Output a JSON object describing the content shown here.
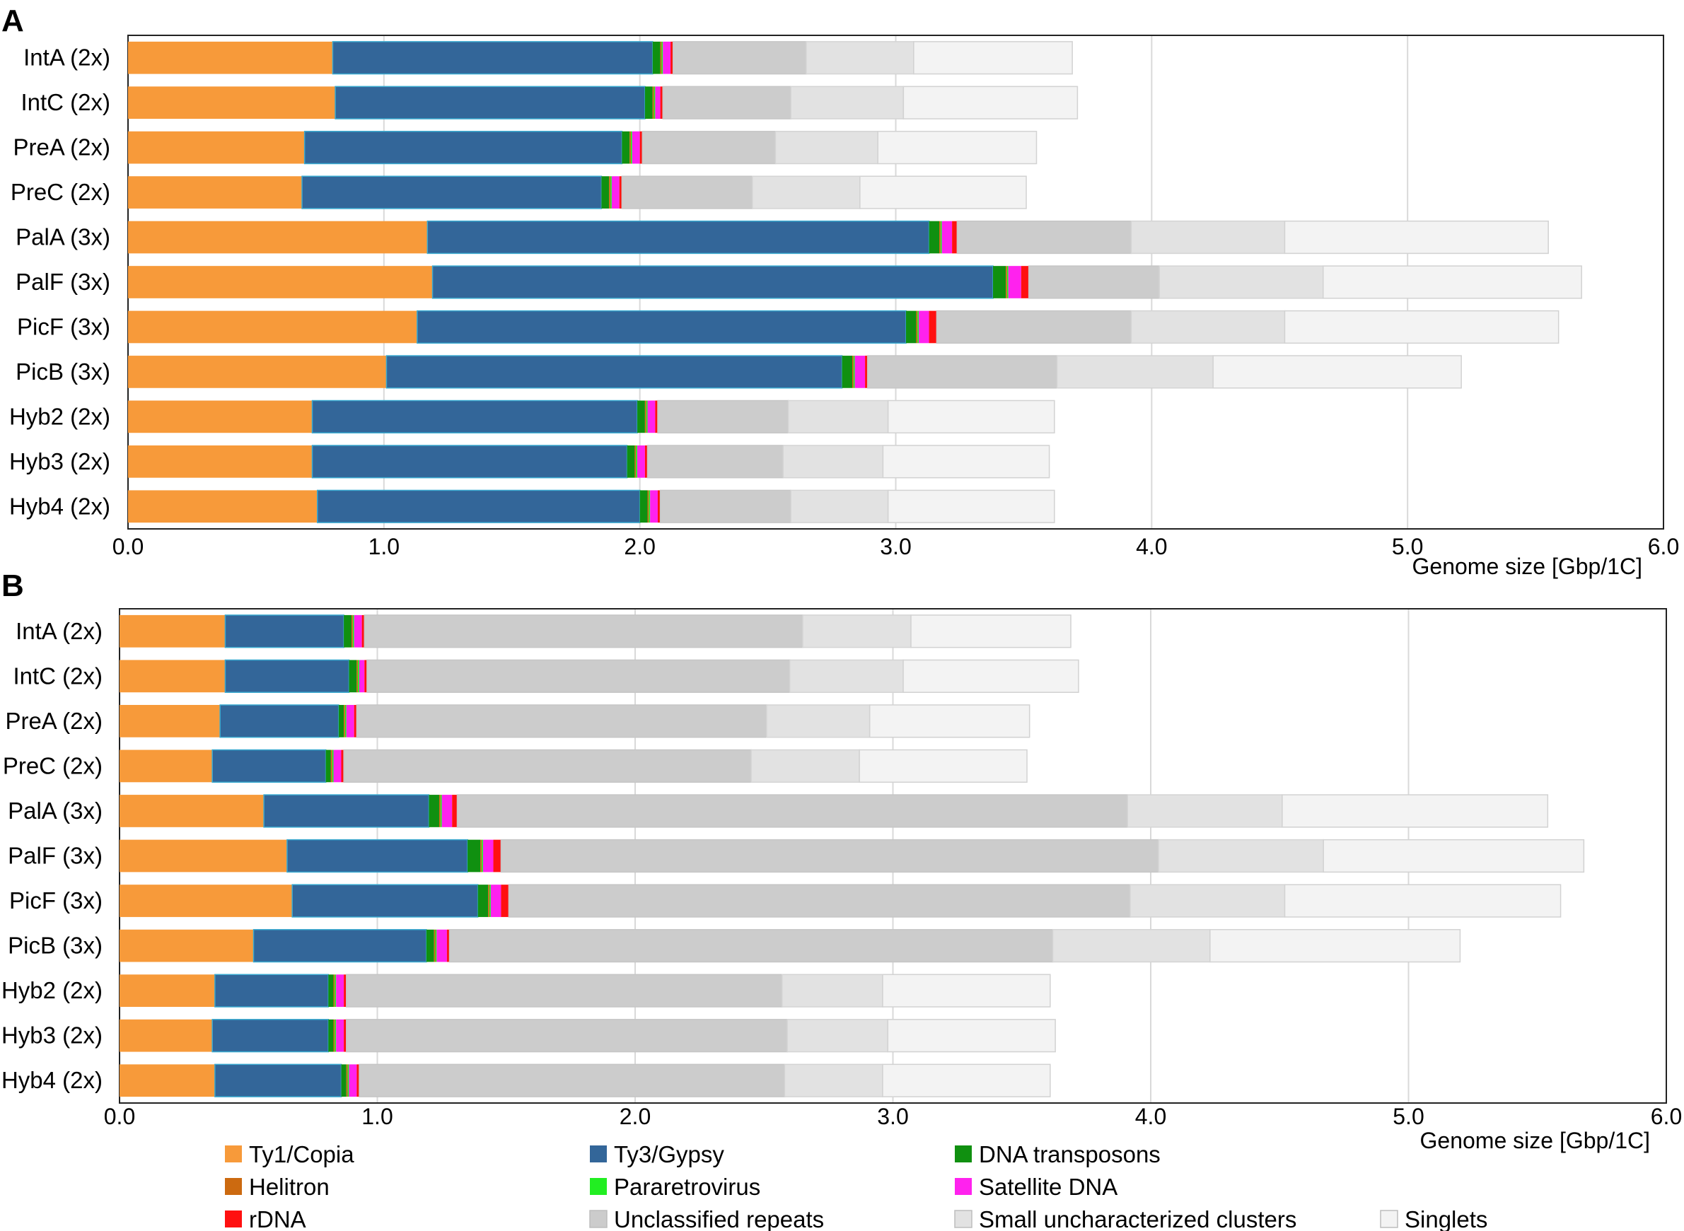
{
  "chart_data": [
    {
      "panel": "A",
      "type": "bar",
      "orientation": "horizontal",
      "stacked": true,
      "categories": [
        "IntA (2x)",
        "IntC (2x)",
        "PreA (2x)",
        "PreC (2x)",
        "PalA (3x)",
        "PalF (3x)",
        "PicF (3x)",
        "PicB (3x)",
        "Hyb2 (2x)",
        "Hyb3 (2x)",
        "Hyb4 (2x)"
      ],
      "xlabel": "Genome size [Gbp/1C]",
      "xlim": [
        0,
        6
      ],
      "xticks": [
        "0.0",
        "1.0",
        "2.0",
        "3.0",
        "4.0",
        "5.0",
        "6.0"
      ],
      "xtick_values": [
        0,
        1,
        2,
        3,
        4,
        5,
        6
      ],
      "grid": "vertical",
      "series": [
        {
          "name": "Ty1/Copia",
          "values": [
            0.8,
            0.81,
            0.69,
            0.68,
            1.17,
            1.19,
            1.13,
            1.01,
            0.72,
            0.72,
            0.74
          ]
        },
        {
          "name": "Ty3/Gypsy",
          "values": [
            1.25,
            1.21,
            1.24,
            1.17,
            1.96,
            2.19,
            1.91,
            1.78,
            1.27,
            1.23,
            1.26
          ]
        },
        {
          "name": "DNA transposons",
          "values": [
            0.03,
            0.03,
            0.03,
            0.03,
            0.04,
            0.05,
            0.04,
            0.04,
            0.03,
            0.03,
            0.03
          ]
        },
        {
          "name": "Helitron",
          "values": [
            0.005,
            0.005,
            0.005,
            0.005,
            0.005,
            0.005,
            0.005,
            0.005,
            0.005,
            0.005,
            0.005
          ]
        },
        {
          "name": "Pararetrovirus",
          "values": [
            0.005,
            0.005,
            0.005,
            0.005,
            0.005,
            0.005,
            0.005,
            0.005,
            0.005,
            0.005,
            0.005
          ]
        },
        {
          "name": "Satellite DNA",
          "values": [
            0.03,
            0.02,
            0.03,
            0.03,
            0.04,
            0.05,
            0.04,
            0.04,
            0.03,
            0.03,
            0.03
          ]
        },
        {
          "name": "rDNA",
          "values": [
            0.01,
            0.01,
            0.01,
            0.01,
            0.02,
            0.03,
            0.03,
            0.01,
            0.01,
            0.01,
            0.01
          ]
        },
        {
          "name": "Unclassified repeats",
          "values": [
            0.52,
            0.5,
            0.52,
            0.51,
            0.68,
            0.51,
            0.76,
            0.74,
            0.51,
            0.53,
            0.51
          ]
        },
        {
          "name": "Small uncharacterized clusters",
          "values": [
            0.42,
            0.44,
            0.4,
            0.42,
            0.6,
            0.64,
            0.6,
            0.61,
            0.39,
            0.39,
            0.38
          ]
        },
        {
          "name": "Singlets",
          "values": [
            0.62,
            0.68,
            0.62,
            0.65,
            1.03,
            1.01,
            1.07,
            0.97,
            0.65,
            0.65,
            0.65
          ]
        }
      ]
    },
    {
      "panel": "B",
      "type": "bar",
      "orientation": "horizontal",
      "stacked": true,
      "categories": [
        "IntA (2x)",
        "IntC (2x)",
        "PreA (2x)",
        "PreC (2x)",
        "PalA (3x)",
        "PalF (3x)",
        "PicF (3x)",
        "PicB (3x)",
        "Hyb2 (2x)",
        "Hyb3 (2x)",
        "Hyb4 (2x)"
      ],
      "xlabel": "Genome size [Gbp/1C]",
      "xlim": [
        0,
        6
      ],
      "xticks": [
        "0.0",
        "1.0",
        "2.0",
        "3.0",
        "4.0",
        "5.0",
        "6.0"
      ],
      "xtick_values": [
        0,
        1,
        2,
        3,
        4,
        5,
        6
      ],
      "grid": "vertical",
      "series": [
        {
          "name": "Ty1/Copia",
          "values": [
            0.41,
            0.41,
            0.39,
            0.36,
            0.56,
            0.65,
            0.67,
            0.52,
            0.37,
            0.36,
            0.37
          ]
        },
        {
          "name": "Ty3/Gypsy",
          "values": [
            0.46,
            0.48,
            0.46,
            0.44,
            0.64,
            0.7,
            0.72,
            0.67,
            0.44,
            0.45,
            0.49
          ]
        },
        {
          "name": "DNA transposons",
          "values": [
            0.03,
            0.03,
            0.02,
            0.02,
            0.04,
            0.05,
            0.04,
            0.03,
            0.02,
            0.02,
            0.02
          ]
        },
        {
          "name": "Helitron",
          "values": [
            0.005,
            0.005,
            0.005,
            0.005,
            0.005,
            0.005,
            0.005,
            0.005,
            0.005,
            0.005,
            0.005
          ]
        },
        {
          "name": "Pararetrovirus",
          "values": [
            0.005,
            0.005,
            0.005,
            0.005,
            0.005,
            0.005,
            0.005,
            0.005,
            0.005,
            0.005,
            0.005
          ]
        },
        {
          "name": "Satellite DNA",
          "values": [
            0.03,
            0.02,
            0.03,
            0.03,
            0.04,
            0.04,
            0.04,
            0.04,
            0.03,
            0.03,
            0.03
          ]
        },
        {
          "name": "rDNA",
          "values": [
            0.01,
            0.01,
            0.01,
            0.01,
            0.02,
            0.03,
            0.03,
            0.01,
            0.01,
            0.01,
            0.01
          ]
        },
        {
          "name": "Unclassified repeats",
          "values": [
            1.7,
            1.64,
            1.59,
            1.58,
            2.6,
            2.55,
            2.41,
            2.34,
            1.69,
            1.71,
            1.65
          ]
        },
        {
          "name": "Small uncharacterized clusters",
          "values": [
            0.42,
            0.44,
            0.4,
            0.42,
            0.6,
            0.64,
            0.6,
            0.61,
            0.39,
            0.39,
            0.38
          ]
        },
        {
          "name": "Singlets",
          "values": [
            0.62,
            0.68,
            0.62,
            0.65,
            1.03,
            1.01,
            1.07,
            0.97,
            0.65,
            0.65,
            0.65
          ]
        }
      ]
    }
  ],
  "legend": {
    "items": [
      {
        "name": "Ty1/Copia",
        "color": "#f79a3a"
      },
      {
        "name": "Ty3/Gypsy",
        "color": "#336699"
      },
      {
        "name": "DNA transposons",
        "color": "#109010"
      },
      {
        "name": "Helitron",
        "color": "#cc6a10"
      },
      {
        "name": "Pararetrovirus",
        "color": "#22ee22"
      },
      {
        "name": "Satellite DNA",
        "color": "#ff22ee"
      },
      {
        "name": "rDNA",
        "color": "#ff1010"
      },
      {
        "name": "Unclassified repeats",
        "color": "#cccccc"
      },
      {
        "name": "Small uncharacterized clusters",
        "color": "#e2e2e2"
      },
      {
        "name": "Singlets",
        "color": "#f3f3f3"
      }
    ]
  }
}
